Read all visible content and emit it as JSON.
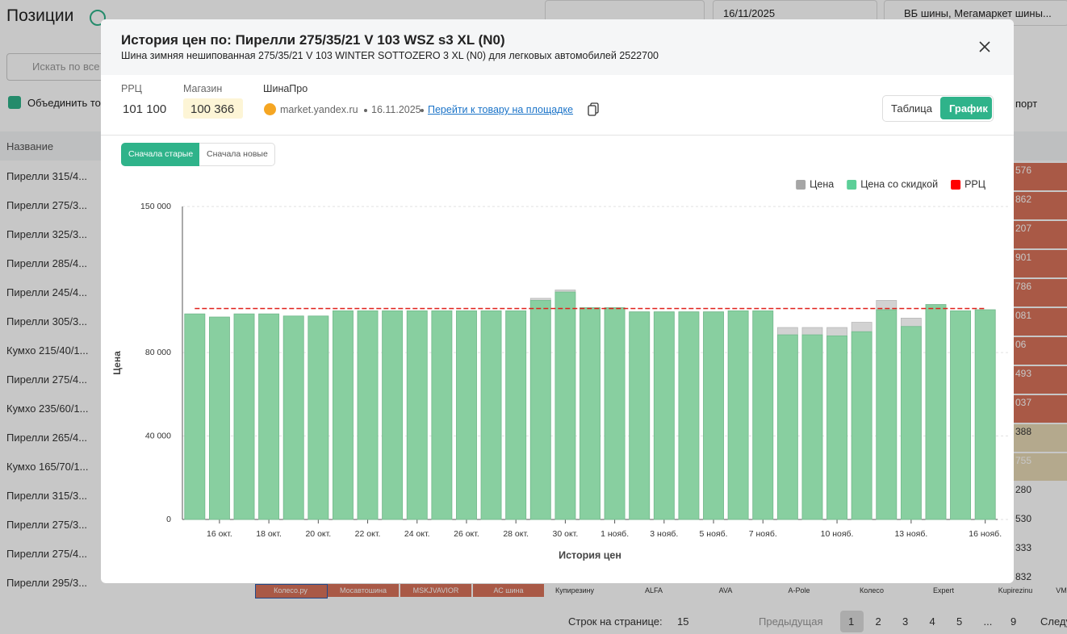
{
  "page": {
    "title": "Позиции",
    "search_placeholder": "Искать по все",
    "merge_label": "Объединить то",
    "export": "порт",
    "date_filter": "16/11/2025",
    "store_filter": "ВБ шины, Мегамаркет шины...",
    "column_name": "Название",
    "rows": [
      "Пирелли 315/4...",
      "Пирелли 275/3...",
      "Пирелли 325/3...",
      "Пирелли 285/4...",
      "Пирелли 245/4...",
      "Пирелли 305/3...",
      "Кумхо 215/40/1...",
      "Пирелли 275/4...",
      "Кумхо 235/60/1...",
      "Пирелли 265/4...",
      "Кумхо 165/70/1...",
      "Пирелли 315/3...",
      "Пирелли 275/3...",
      "Пирелли 275/4...",
      "Пирелли 295/3..."
    ],
    "side_prices": [
      "576",
      "862",
      "207",
      "901",
      "786",
      "081",
      "06",
      "493",
      "037",
      "388",
      "755",
      "280",
      "530",
      "333",
      "832"
    ],
    "stores": [
      "Колесо.ру",
      "Мосавтошина",
      "MSKJVAVIOR",
      "АС шина",
      "Купирезину",
      "ALFA",
      "AVA",
      "A-Pole",
      "Колесо",
      "Expert",
      "Kupirezinu",
      "VM"
    ],
    "pagination": {
      "rows_label": "Строк на странице:",
      "rows_value": "15",
      "prev": "Предыдущая",
      "pages": [
        "1",
        "2",
        "3",
        "4",
        "5",
        "...",
        "9"
      ],
      "next": "Следу"
    }
  },
  "modal": {
    "title": "История цен по: Пирелли 275/35/21 V 103 WSZ s3 XL (N0)",
    "subtitle": "Шина зимняя нешипованная 275/35/21 V 103 WINTER SOTTOZERO 3 XL (N0) для легковых автомобилей 2522700",
    "rrc_label": "РРЦ",
    "rrc_value": "101 100",
    "store_label": "Магазин",
    "store_value": "100 366",
    "seller": "ШинаПро",
    "source": "market.yandex.ru",
    "date": "16.11.2025",
    "link": "Перейти к товару на площадке",
    "views": [
      "Таблица",
      "График"
    ],
    "sort": [
      "Сначала старые",
      "Сначала новые"
    ]
  },
  "chart_data": {
    "type": "bar",
    "x_label": "История цен",
    "y_label": "Цена",
    "legend": "top-right",
    "grid": true,
    "categories": [
      null,
      "16 окт.",
      null,
      "18 окт.",
      null,
      "20 окт.",
      null,
      "22 окт.",
      null,
      "24 окт.",
      null,
      "26 окт.",
      null,
      "28 окт.",
      null,
      "30 окт.",
      null,
      "1 нояб.",
      null,
      "3 нояб.",
      null,
      "5 нояб.",
      null,
      "7 нояб.",
      null,
      null,
      "10 нояб.",
      null,
      null,
      "13 нояб.",
      null,
      null,
      "16 нояб."
    ],
    "ylim": [
      0,
      150000
    ],
    "yticks": [
      0,
      {
        "value": 40000,
        "label": "40 000"
      },
      {
        "value": 80000,
        "label": "80 000"
      },
      {
        "value": 150000,
        "label": "150 000"
      }
    ],
    "series": [
      {
        "name": "Цена",
        "color": "#d2d2d2",
        "legend_color": "#a6a6a6",
        "values": [
          98500,
          97000,
          98500,
          98500,
          97500,
          97500,
          100000,
          100000,
          100000,
          100000,
          100000,
          100000,
          100000,
          100000,
          106000,
          110000,
          101500,
          101500,
          99500,
          99500,
          99500,
          99500,
          100000,
          100000,
          92000,
          92000,
          92000,
          94500,
          105000,
          96500,
          103000,
          100000,
          100500
        ]
      },
      {
        "name": "Цена со скидкой",
        "color": "#88cfa0",
        "legend_color": "#5ccf98",
        "values": [
          98500,
          97000,
          98500,
          98500,
          97500,
          97500,
          100000,
          100000,
          100000,
          100000,
          100000,
          100000,
          100000,
          100000,
          105000,
          109000,
          101500,
          101500,
          99500,
          99500,
          99500,
          99500,
          100000,
          100000,
          88500,
          88500,
          88000,
          90000,
          100500,
          92500,
          103000,
          100000,
          100500
        ]
      },
      {
        "name": "РРЦ",
        "color": "#e0201b",
        "legend_color": "#ff0000",
        "type": "line",
        "line_style": "dashed",
        "values": [
          101100,
          101100,
          101100,
          101100,
          101100,
          101100,
          101100,
          101100,
          101100,
          101100,
          101100,
          101100,
          101100,
          101100,
          101100,
          101100,
          101100,
          101100,
          101100,
          101100,
          101100,
          101100,
          101100,
          101100,
          101100,
          101100,
          101100,
          101100,
          101100,
          101100,
          101100,
          101100,
          101100
        ]
      }
    ]
  }
}
